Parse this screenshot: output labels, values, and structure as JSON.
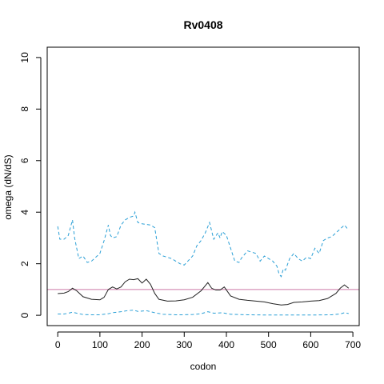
{
  "chart_data": {
    "type": "line",
    "title": "Rv0408",
    "xlabel": "codon",
    "ylabel": "omega (dN/dS)",
    "xlim": [
      -25,
      715
    ],
    "ylim": [
      -0.4,
      10.4
    ],
    "xticks": [
      0,
      100,
      200,
      300,
      400,
      500,
      600,
      700
    ],
    "yticks": [
      0,
      2,
      4,
      6,
      8,
      10
    ],
    "reference_line": {
      "y": 1,
      "color": "#CC79A7"
    },
    "series": [
      {
        "style": "solid",
        "color": "#222222",
        "x": [
          0,
          15,
          25,
          35,
          45,
          60,
          80,
          100,
          110,
          120,
          130,
          140,
          150,
          160,
          170,
          180,
          190,
          200,
          210,
          220,
          230,
          240,
          260,
          280,
          300,
          320,
          340,
          350,
          356,
          365,
          375,
          385,
          395,
          410,
          430,
          450,
          470,
          490,
          510,
          530,
          545,
          560,
          580,
          600,
          620,
          640,
          660,
          670,
          680,
          690
        ],
        "y": [
          0.84,
          0.86,
          0.92,
          1.05,
          0.95,
          0.72,
          0.62,
          0.6,
          0.7,
          1.0,
          1.1,
          1.02,
          1.1,
          1.3,
          1.4,
          1.38,
          1.42,
          1.25,
          1.4,
          1.2,
          0.85,
          0.62,
          0.55,
          0.56,
          0.6,
          0.7,
          0.95,
          1.15,
          1.27,
          1.05,
          0.98,
          0.98,
          1.1,
          0.75,
          0.62,
          0.58,
          0.55,
          0.52,
          0.45,
          0.4,
          0.42,
          0.5,
          0.52,
          0.55,
          0.57,
          0.65,
          0.85,
          1.05,
          1.18,
          1.05
        ]
      },
      {
        "style": "dashed",
        "color": "#2A9FD6",
        "x": [
          0,
          5,
          15,
          25,
          35,
          40,
          45,
          50,
          60,
          70,
          80,
          90,
          100,
          110,
          115,
          120,
          125,
          130,
          140,
          150,
          160,
          170,
          180,
          183,
          190,
          200,
          220,
          230,
          240,
          250,
          270,
          290,
          300,
          320,
          330,
          340,
          350,
          360,
          370,
          380,
          385,
          390,
          400,
          410,
          420,
          430,
          435,
          440,
          450,
          460,
          470,
          480,
          490,
          500,
          510,
          520,
          525,
          530,
          535,
          540,
          550,
          560,
          570,
          580,
          590,
          600,
          610,
          620,
          630,
          640,
          650,
          660,
          670,
          680,
          690
        ],
        "y": [
          3.45,
          2.95,
          2.95,
          3.1,
          3.7,
          3.0,
          2.6,
          2.2,
          2.3,
          2.05,
          2.1,
          2.25,
          2.4,
          2.9,
          3.2,
          3.5,
          3.1,
          3.0,
          3.05,
          3.5,
          3.7,
          3.8,
          3.85,
          4.0,
          3.6,
          3.55,
          3.5,
          3.4,
          2.4,
          2.3,
          2.2,
          2.0,
          1.95,
          2.3,
          2.7,
          2.9,
          3.2,
          3.6,
          2.95,
          3.2,
          3.0,
          3.25,
          3.1,
          2.6,
          2.1,
          2.05,
          2.2,
          2.3,
          2.5,
          2.45,
          2.4,
          2.1,
          2.3,
          2.2,
          2.1,
          1.9,
          1.6,
          1.5,
          1.8,
          1.75,
          2.2,
          2.4,
          2.2,
          2.1,
          2.25,
          2.2,
          2.6,
          2.4,
          2.9,
          3.0,
          3.05,
          3.2,
          3.35,
          3.5,
          3.3
        ]
      },
      {
        "style": "dashed",
        "color": "#2A9FD6",
        "x": [
          0,
          15,
          25,
          35,
          45,
          60,
          80,
          100,
          120,
          130,
          150,
          165,
          180,
          190,
          210,
          230,
          250,
          280,
          300,
          320,
          340,
          356,
          370,
          390,
          410,
          450,
          500,
          550,
          600,
          650,
          670,
          680,
          690
        ],
        "y": [
          0.05,
          0.05,
          0.08,
          0.12,
          0.08,
          0.03,
          0.02,
          0.02,
          0.06,
          0.1,
          0.14,
          0.18,
          0.2,
          0.15,
          0.18,
          0.1,
          0.04,
          0.02,
          0.02,
          0.03,
          0.06,
          0.14,
          0.08,
          0.1,
          0.04,
          0.02,
          0.01,
          0.01,
          0.01,
          0.02,
          0.05,
          0.1,
          0.07
        ]
      }
    ]
  }
}
